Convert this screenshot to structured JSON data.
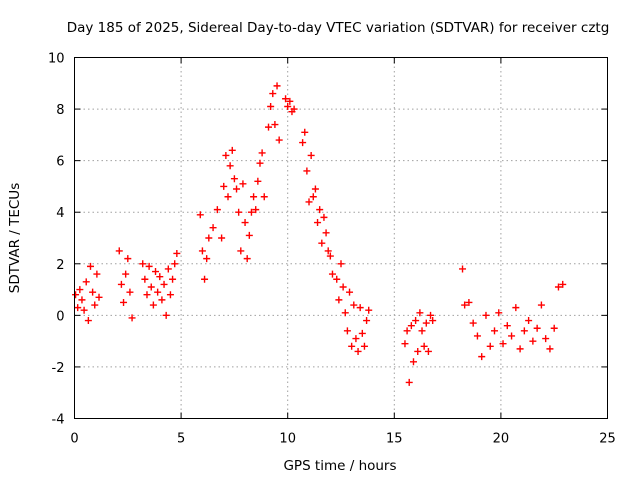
{
  "chart_data": {
    "type": "scatter",
    "title": "Day 185 of 2025, Sidereal Day-to-day VTEC variation (SDTVAR) for receiver cztg",
    "xlabel": "GPS time / hours",
    "ylabel": "SDTVAR / TECUs",
    "xlim": [
      0,
      25
    ],
    "ylim": [
      -4,
      10
    ],
    "xticks": [
      "0",
      "5",
      "10",
      "15",
      "20",
      "25"
    ],
    "yticks": [
      "-4",
      "-2",
      "0",
      "2",
      "4",
      "6",
      "8",
      "10"
    ],
    "grid": true,
    "marker": "+",
    "color": "#ff0000",
    "series": [
      {
        "name": "SDTVAR",
        "x": [
          0.05,
          0.15,
          0.25,
          0.35,
          0.45,
          0.55,
          0.65,
          0.75,
          0.85,
          0.95,
          1.05,
          1.15,
          2.1,
          2.2,
          2.3,
          2.4,
          2.5,
          2.6,
          2.7,
          3.2,
          3.3,
          3.4,
          3.5,
          3.6,
          3.7,
          3.8,
          3.9,
          4.0,
          4.1,
          4.2,
          4.3,
          4.4,
          4.5,
          4.6,
          4.7,
          4.8,
          5.9,
          6.0,
          6.1,
          6.2,
          6.3,
          6.5,
          6.7,
          6.9,
          7.0,
          7.1,
          7.2,
          7.3,
          7.4,
          7.5,
          7.6,
          7.7,
          7.8,
          7.9,
          8.0,
          8.1,
          8.2,
          8.3,
          8.4,
          8.5,
          8.6,
          8.7,
          8.8,
          8.9,
          9.1,
          9.2,
          9.3,
          9.4,
          9.5,
          9.6,
          9.9,
          10.0,
          10.1,
          10.2,
          10.3,
          10.7,
          10.8,
          10.9,
          11.0,
          11.1,
          11.2,
          11.3,
          11.4,
          11.5,
          11.6,
          11.7,
          11.8,
          11.9,
          12.0,
          12.1,
          12.3,
          12.4,
          12.5,
          12.6,
          12.7,
          12.8,
          12.9,
          13.0,
          13.1,
          13.2,
          13.3,
          13.4,
          13.5,
          13.6,
          13.7,
          13.8,
          15.5,
          15.6,
          15.7,
          15.8,
          15.9,
          16.0,
          16.1,
          16.2,
          16.3,
          16.4,
          16.5,
          16.6,
          16.7,
          16.8,
          18.2,
          18.3,
          18.5,
          18.7,
          18.9,
          19.1,
          19.3,
          19.5,
          19.7,
          19.9,
          20.1,
          20.3,
          20.5,
          20.7,
          20.9,
          21.1,
          21.3,
          21.5,
          21.7,
          21.9,
          22.1,
          22.3,
          22.5,
          22.7,
          22.9
        ],
        "y": [
          0.8,
          0.3,
          1.0,
          0.6,
          0.2,
          1.3,
          -0.2,
          1.9,
          0.9,
          0.4,
          1.6,
          0.7,
          2.5,
          1.2,
          0.5,
          1.6,
          2.2,
          0.9,
          -0.1,
          2.0,
          1.4,
          0.8,
          1.9,
          1.1,
          0.4,
          1.7,
          0.9,
          1.5,
          0.6,
          1.2,
          0.0,
          1.8,
          0.8,
          1.4,
          2.0,
          2.4,
          3.9,
          2.5,
          1.4,
          2.2,
          3.0,
          3.4,
          4.1,
          3.0,
          5.0,
          6.2,
          4.6,
          5.8,
          6.4,
          5.3,
          4.9,
          4.0,
          2.5,
          5.1,
          3.6,
          2.2,
          3.1,
          4.0,
          4.6,
          4.1,
          5.2,
          5.9,
          6.3,
          4.6,
          7.3,
          8.1,
          8.6,
          7.4,
          8.9,
          6.8,
          8.4,
          8.1,
          8.3,
          7.9,
          8.0,
          6.7,
          7.1,
          5.6,
          4.4,
          6.2,
          4.6,
          4.9,
          3.6,
          4.1,
          2.8,
          3.8,
          3.2,
          2.5,
          2.3,
          1.6,
          1.4,
          0.6,
          2.0,
          1.1,
          0.1,
          -0.6,
          0.9,
          -1.2,
          0.4,
          -0.9,
          -1.4,
          0.3,
          -0.7,
          -1.2,
          -0.2,
          0.2,
          -1.1,
          -0.6,
          -2.6,
          -0.4,
          -1.8,
          -0.2,
          -1.4,
          0.1,
          -0.6,
          -1.2,
          -0.3,
          -1.4,
          0.0,
          -0.2,
          1.8,
          0.4,
          0.5,
          -0.3,
          -0.8,
          -1.6,
          0.0,
          -1.2,
          -0.6,
          0.1,
          -1.1,
          -0.4,
          -0.8,
          0.3,
          -1.3,
          -0.6,
          -0.2,
          -1.0,
          -0.5,
          0.4,
          -0.9,
          -1.3,
          -0.5,
          1.1,
          1.2
        ]
      }
    ]
  }
}
